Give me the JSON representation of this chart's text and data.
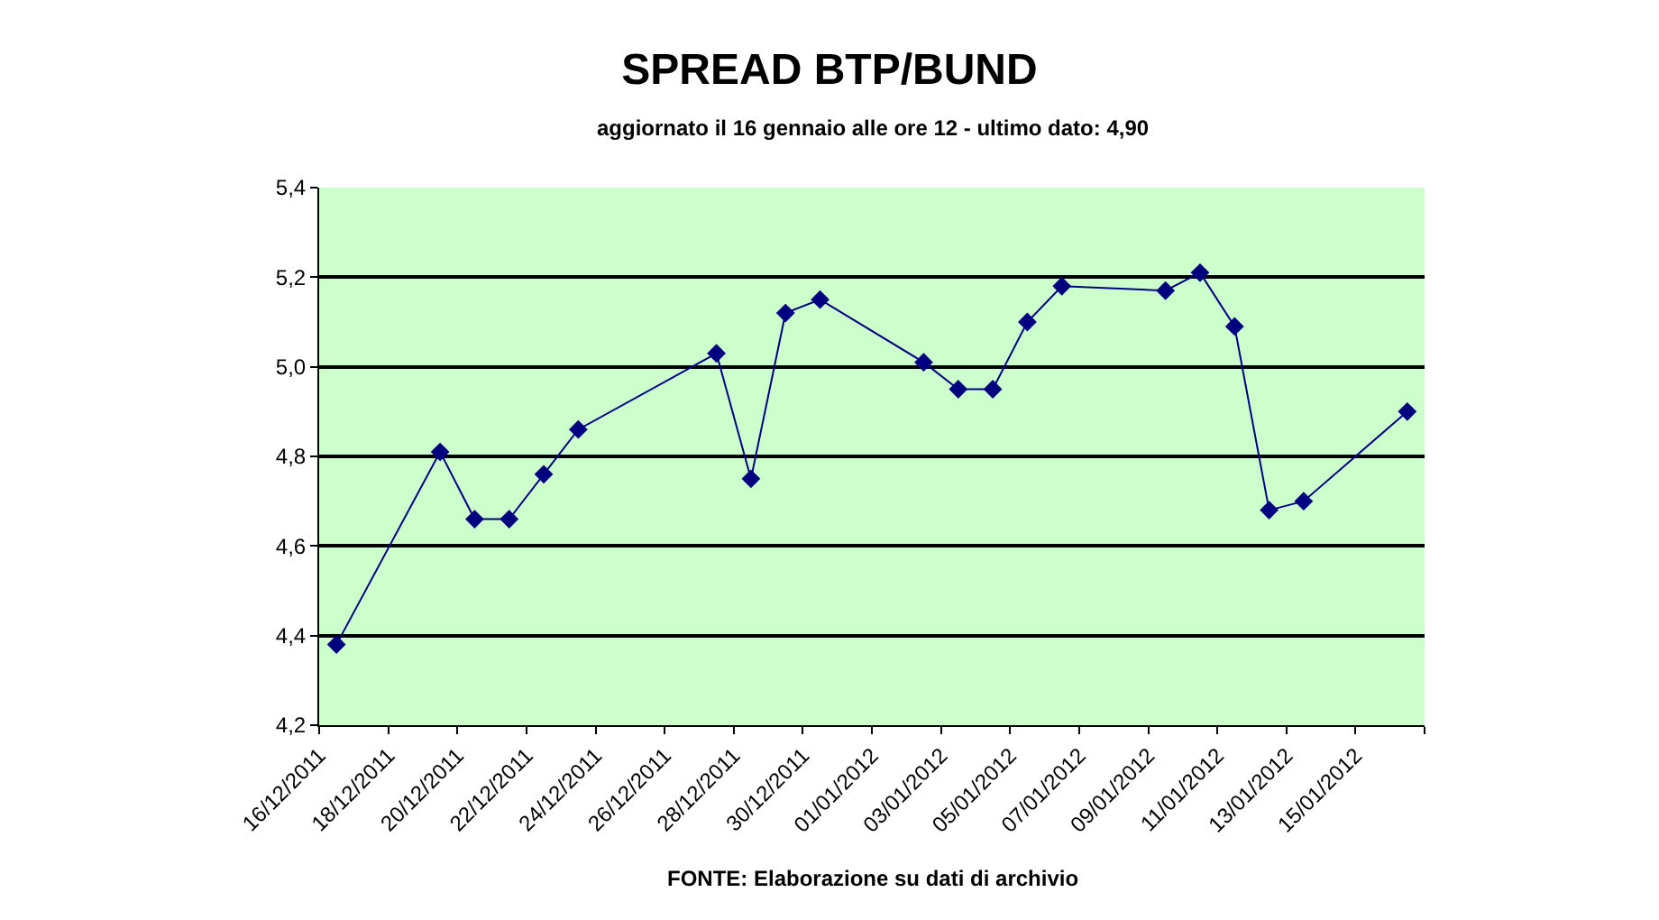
{
  "chart_data": {
    "type": "line",
    "title": "SPREAD BTP/BUND",
    "subtitle": "aggiornato il 16 gennaio alle ore 12 - ultimo dato: 4,90",
    "x": [
      "2011-12-16T12:00",
      "2011-12-19T12:00",
      "2011-12-20T12:00",
      "2011-12-21T12:00",
      "2011-12-22T12:00",
      "2011-12-23T12:00",
      "2011-12-27T12:00",
      "2011-12-28T12:00",
      "2011-12-29T12:00",
      "2011-12-30T12:00",
      "2012-01-02T12:00",
      "2012-01-03T12:00",
      "2012-01-04T12:00",
      "2012-01-05T12:00",
      "2012-01-06T12:00",
      "2012-01-09T12:00",
      "2012-01-10T12:00",
      "2012-01-11T12:00",
      "2012-01-12T12:00",
      "2012-01-13T12:00",
      "2012-01-16T12:00"
    ],
    "series": [
      {
        "color": "#000080",
        "values": [
          4.38,
          4.81,
          4.66,
          4.66,
          4.76,
          4.86,
          5.03,
          4.75,
          5.12,
          5.15,
          5.01,
          4.95,
          4.95,
          5.1,
          5.18,
          5.17,
          5.21,
          5.09,
          4.68,
          4.7,
          4.9
        ]
      }
    ],
    "xlim": [
      "2011-12-16",
      "2012-01-17"
    ],
    "xticks": [
      {
        "value": "2011-12-16",
        "label": "16/12/2011"
      },
      {
        "value": "2011-12-18",
        "label": "18/12/2011"
      },
      {
        "value": "2011-12-20",
        "label": "20/12/2011"
      },
      {
        "value": "2011-12-22",
        "label": "22/12/2011"
      },
      {
        "value": "2011-12-24",
        "label": "24/12/2011"
      },
      {
        "value": "2011-12-26",
        "label": "26/12/2011"
      },
      {
        "value": "2011-12-28",
        "label": "28/12/2011"
      },
      {
        "value": "2011-12-30",
        "label": "30/12/2011"
      },
      {
        "value": "2012-01-01",
        "label": "01/01/2012"
      },
      {
        "value": "2012-01-03",
        "label": "03/01/2012"
      },
      {
        "value": "2012-01-05",
        "label": "05/01/2012"
      },
      {
        "value": "2012-01-07",
        "label": "07/01/2012"
      },
      {
        "value": "2012-01-09",
        "label": "09/01/2012"
      },
      {
        "value": "2012-01-11",
        "label": "11/01/2012"
      },
      {
        "value": "2012-01-13",
        "label": "13/01/2012"
      },
      {
        "value": "2012-01-15",
        "label": "15/01/2012"
      },
      {
        "value": "2012-01-17",
        "label": null
      }
    ],
    "ylim": [
      4.2,
      5.4
    ],
    "yticks": [
      {
        "value": 4.2,
        "label": "4,2"
      },
      {
        "value": 4.4,
        "label": "4,4"
      },
      {
        "value": 4.6,
        "label": "4,6"
      },
      {
        "value": 4.8,
        "label": "4,8"
      },
      {
        "value": 5.0,
        "label": "5,0"
      },
      {
        "value": 5.2,
        "label": "5,2"
      },
      {
        "value": 5.4,
        "label": "5,4"
      }
    ],
    "grid": "y",
    "marker": "diamond",
    "line_style": "solid",
    "annotations": [
      "FONTE: Elaborazione su dati di archivio"
    ]
  }
}
